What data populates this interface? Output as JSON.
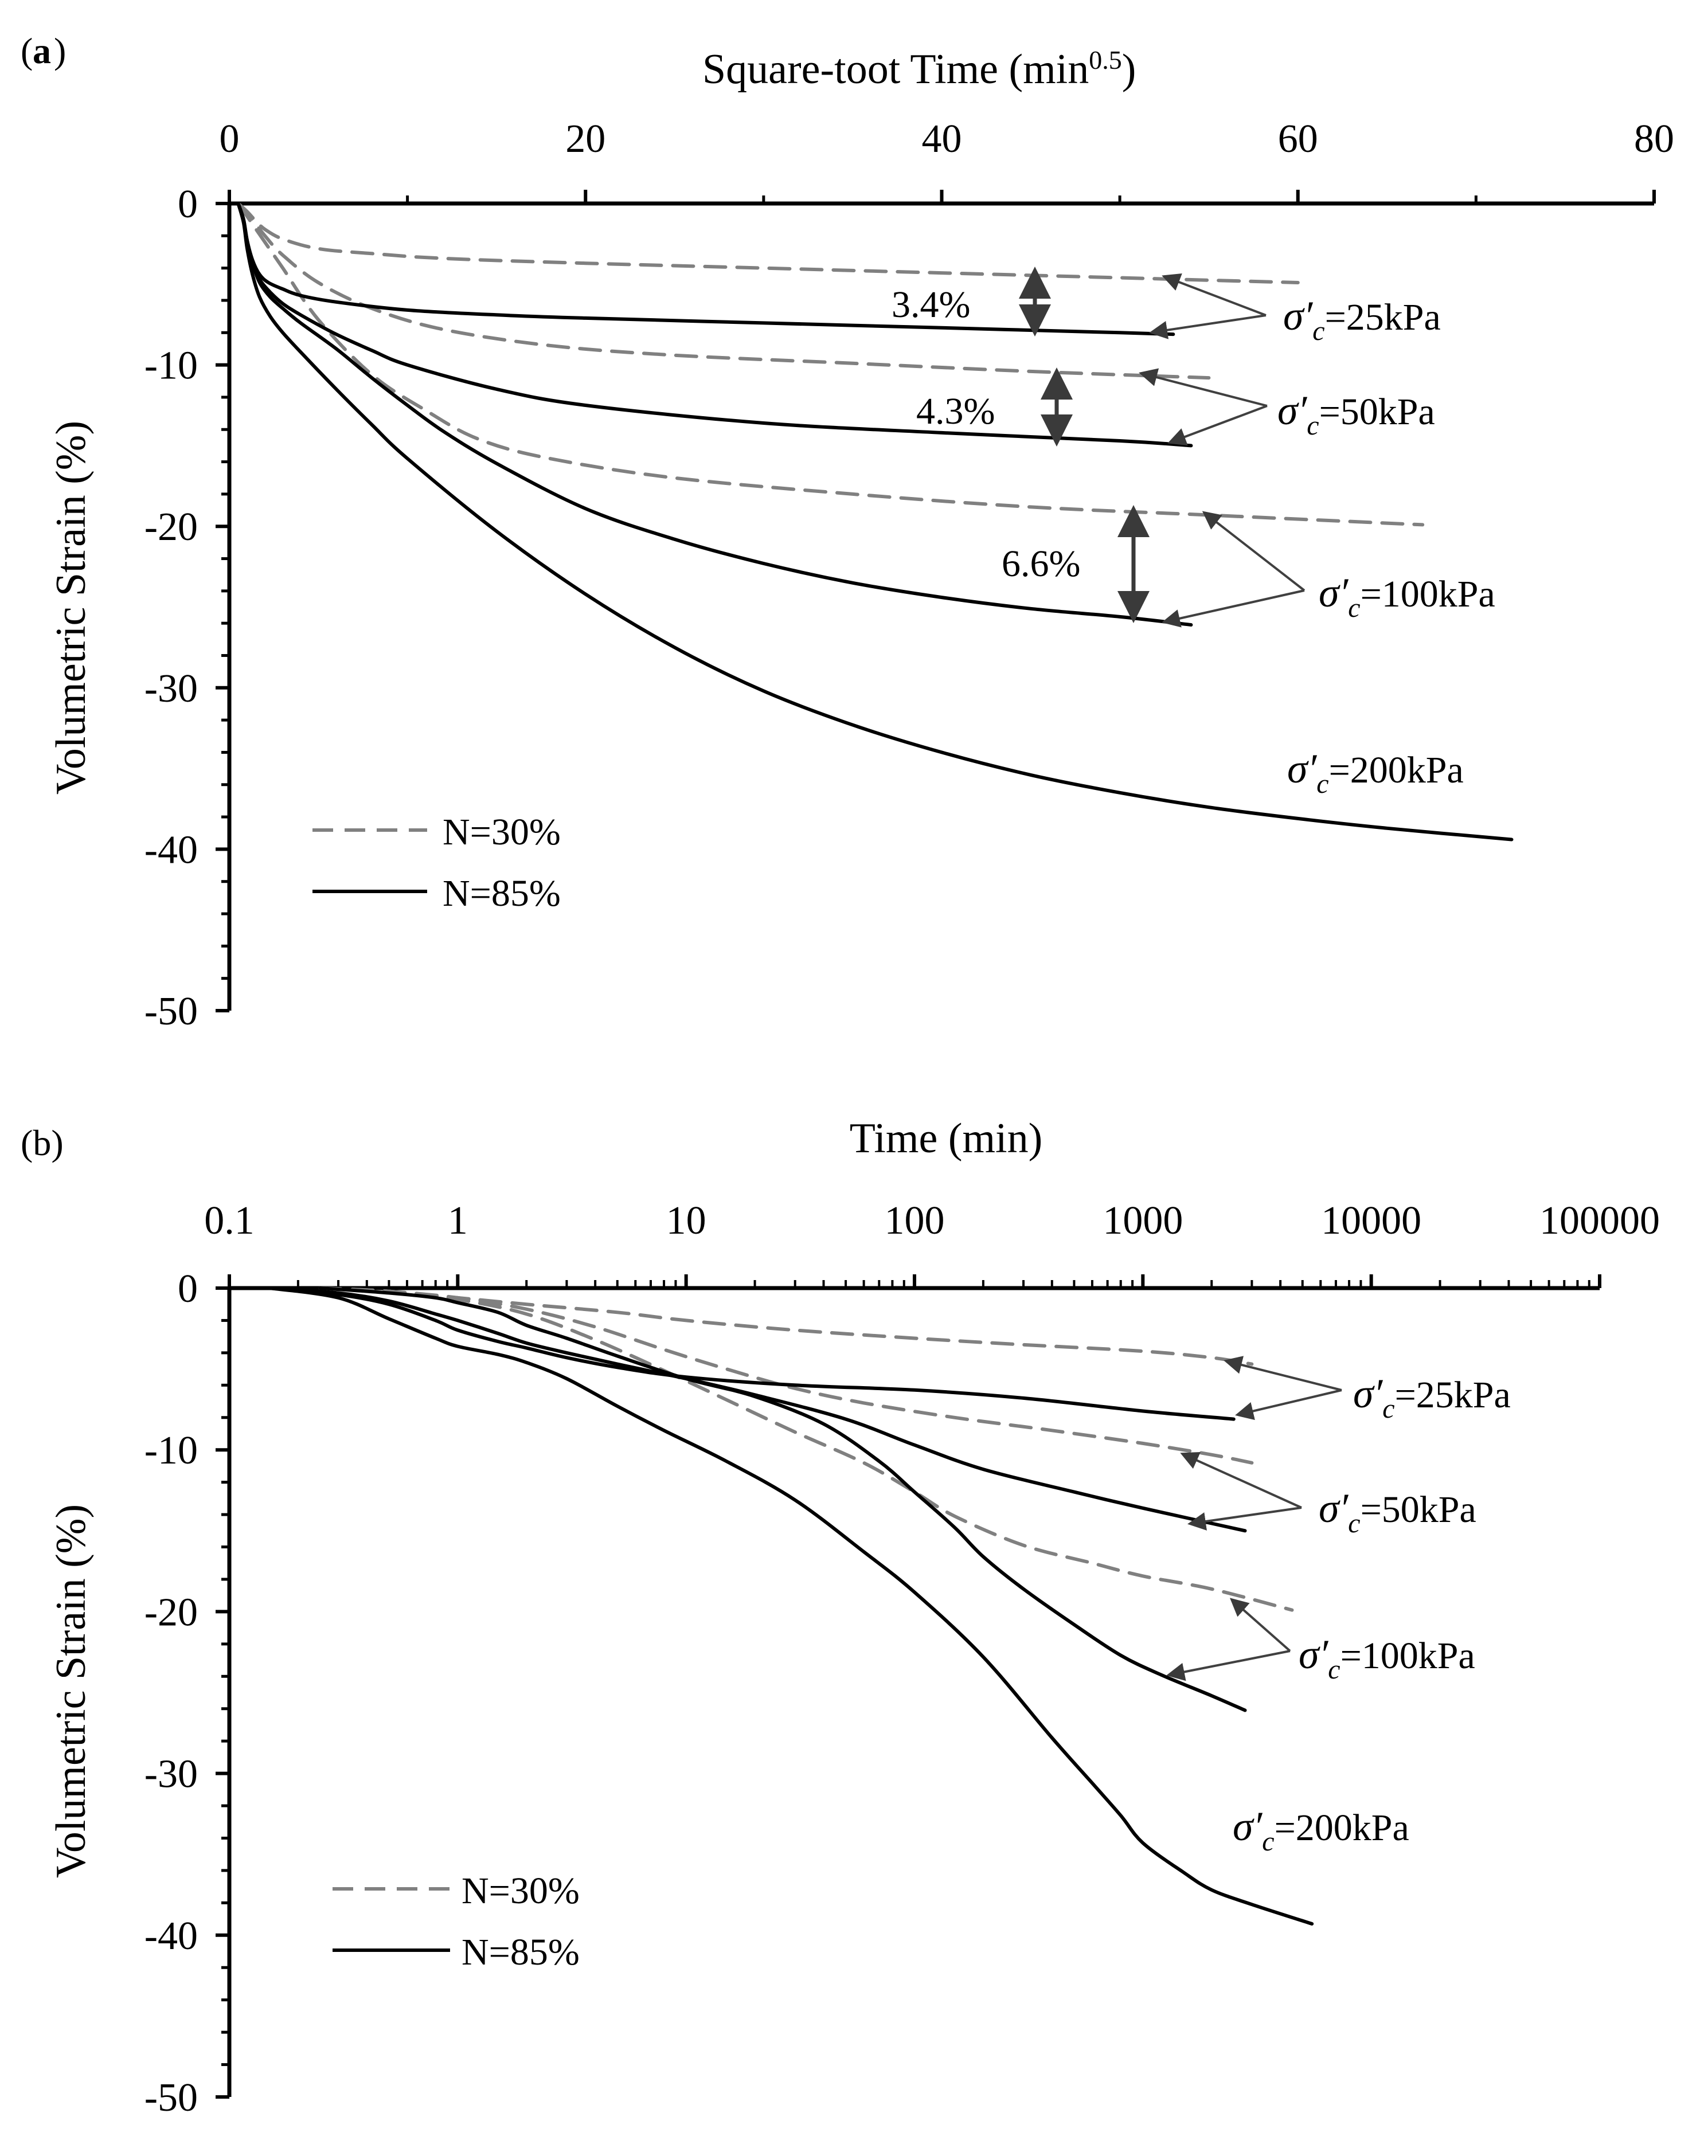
{
  "figure": {
    "panel_a_label": "a",
    "panel_b_label": "(b)"
  },
  "legend": {
    "n30": "N=30%",
    "n85": "N=85%",
    "n30_color": "#808080",
    "n85_color": "#000000"
  },
  "stress_labels": {
    "s25": "=25kPa",
    "s50": "=50kPa",
    "s100": "=100kPa",
    "s200": "=200kPa",
    "sigma_symbol": "σ′",
    "sub_c": "c"
  },
  "chart_data": [
    {
      "panel": "a",
      "type": "line",
      "title": "",
      "xlabel": "Square-toot Time (min",
      "xlabel_superscript": "0.5",
      "xlabel_suffix": ")",
      "ylabel": "Volumetric Strain (%)",
      "x_axis_position": "top",
      "xlim": [
        0,
        80
      ],
      "ylim": [
        -50,
        0
      ],
      "x_ticks": [
        0,
        20,
        40,
        60,
        80
      ],
      "y_ticks": [
        0,
        -10,
        -20,
        -30,
        -40,
        -50
      ],
      "grid": false,
      "legend_position": "bottom-left",
      "annotations": [
        "3.4%",
        "4.3%",
        "6.6%"
      ],
      "series": [
        {
          "name": "N=30%, σ′c=25kPa",
          "style": "dashed",
          "x": [
            0.5,
            1,
            1.5,
            2,
            3,
            5,
            8,
            12,
            20,
            30,
            40,
            50,
            60
          ],
          "y": [
            0,
            -0.5,
            -1.1,
            -1.6,
            -2.2,
            -2.8,
            -3.1,
            -3.4,
            -3.7,
            -4.0,
            -4.3,
            -4.6,
            -4.9
          ]
        },
        {
          "name": "N=30%, σ′c=50kPa",
          "style": "dashed",
          "x": [
            0.5,
            1,
            2,
            3,
            5,
            8,
            12,
            18,
            25,
            35,
            45,
            55
          ],
          "y": [
            0,
            -0.6,
            -2.0,
            -3.2,
            -4.9,
            -6.5,
            -7.8,
            -8.8,
            -9.4,
            -9.9,
            -10.4,
            -10.8
          ]
        },
        {
          "name": "N=30%, σ′c=100kPa",
          "style": "dashed",
          "x": [
            0.5,
            1,
            2,
            3,
            5,
            8,
            11,
            14,
            18,
            25,
            35,
            45,
            55,
            67
          ],
          "y": [
            0,
            -0.8,
            -2.4,
            -4.0,
            -7.2,
            -10.6,
            -12.8,
            -14.6,
            -15.8,
            -17.0,
            -18.0,
            -18.8,
            -19.3,
            -19.9
          ]
        },
        {
          "name": "N=85%, σ′c=25kPa",
          "style": "solid",
          "x": [
            0.5,
            0.8,
            1,
            1.3,
            1.7,
            2.2,
            3,
            4,
            6,
            10,
            15,
            20,
            30,
            40,
            50,
            53
          ],
          "y": [
            0,
            -1.0,
            -2.3,
            -3.5,
            -4.4,
            -4.9,
            -5.3,
            -5.7,
            -6.1,
            -6.6,
            -6.9,
            -7.1,
            -7.4,
            -7.7,
            -8.0,
            -8.1
          ]
        },
        {
          "name": "N=85%, σ′c=50kPa",
          "style": "solid",
          "x": [
            0.5,
            0.8,
            1,
            1.3,
            1.7,
            2.3,
            3,
            4,
            6,
            8,
            10,
            15,
            20,
            30,
            40,
            50,
            54
          ],
          "y": [
            0,
            -1.0,
            -2.3,
            -3.6,
            -4.7,
            -5.5,
            -6.2,
            -6.9,
            -8.1,
            -9.1,
            -10.0,
            -11.5,
            -12.5,
            -13.6,
            -14.2,
            -14.7,
            -15.0
          ]
        },
        {
          "name": "N=85%, σ′c=100kPa",
          "style": "solid",
          "x": [
            0.5,
            0.8,
            1,
            1.3,
            1.7,
            2.3,
            3,
            4,
            6,
            8,
            10,
            12,
            15,
            20,
            25,
            30,
            35,
            40,
            45,
            50,
            54
          ],
          "y": [
            0,
            -1.1,
            -2.4,
            -3.7,
            -4.9,
            -5.8,
            -6.5,
            -7.4,
            -9.0,
            -10.8,
            -12.5,
            -14.1,
            -16.1,
            -18.9,
            -20.8,
            -22.3,
            -23.5,
            -24.4,
            -25.1,
            -25.6,
            -26.1
          ]
        },
        {
          "name": "N=85%, σ′c=200kPa",
          "style": "solid",
          "x": [
            0.5,
            0.8,
            1,
            1.3,
            1.7,
            2.3,
            3,
            4,
            6,
            8,
            10,
            15,
            20,
            25,
            30,
            35,
            40,
            45,
            50,
            55,
            60,
            65,
            72
          ],
          "y": [
            0,
            -1.2,
            -2.8,
            -4.4,
            -5.8,
            -7.0,
            -8.0,
            -9.2,
            -11.5,
            -13.7,
            -15.8,
            -20.3,
            -24.2,
            -27.5,
            -30.2,
            -32.3,
            -34.0,
            -35.4,
            -36.5,
            -37.4,
            -38.1,
            -38.7,
            -39.4
          ]
        }
      ]
    },
    {
      "panel": "b",
      "type": "line",
      "title": "",
      "xlabel": "Time (min)",
      "ylabel": "Volumetric Strain (%)",
      "x_axis_position": "top",
      "x_scale": "log",
      "xlim": [
        0.1,
        100000
      ],
      "ylim": [
        -50,
        0
      ],
      "x_ticks": [
        0.1,
        1,
        10,
        100,
        1000,
        10000,
        100000
      ],
      "x_tick_labels": [
        "0.1",
        "1",
        "10",
        "100",
        "1000",
        "10000",
        "100000"
      ],
      "y_ticks": [
        0,
        -10,
        -20,
        -30,
        -40,
        -50
      ],
      "grid": false,
      "legend_position": "bottom-left",
      "series": [
        {
          "name": "N=30%, σ′c=25kPa",
          "style": "dashed",
          "x": [
            0.25,
            0.5,
            1,
            2,
            5,
            10,
            30,
            100,
            300,
            1000,
            2000,
            3000
          ],
          "y": [
            0,
            -0.2,
            -0.6,
            -1.0,
            -1.5,
            -2.0,
            -2.6,
            -3.1,
            -3.5,
            -3.9,
            -4.3,
            -4.7
          ]
        },
        {
          "name": "N=30%, σ′c=50kPa",
          "style": "dashed",
          "x": [
            0.25,
            0.5,
            1,
            2,
            4,
            8,
            15,
            30,
            60,
            150,
            400,
            1000,
            2000,
            3000
          ],
          "y": [
            0,
            -0.2,
            -0.6,
            -1.3,
            -2.4,
            -3.8,
            -5.0,
            -6.2,
            -7.1,
            -8.0,
            -8.8,
            -9.6,
            -10.3,
            -10.8
          ]
        },
        {
          "name": "N=30%, σ′c=100kPa",
          "style": "dashed",
          "x": [
            0.25,
            0.5,
            1,
            2,
            4,
            8,
            15,
            30,
            60,
            100,
            150,
            300,
            600,
            1000,
            2000,
            4500
          ],
          "y": [
            0,
            -0.2,
            -0.7,
            -1.6,
            -3.2,
            -5.1,
            -6.9,
            -8.9,
            -10.8,
            -12.6,
            -14.1,
            -15.9,
            -17.0,
            -17.8,
            -18.6,
            -19.9
          ]
        },
        {
          "name": "N=85%, σ′c=25kPa",
          "style": "solid",
          "x": [
            0.15,
            0.3,
            0.5,
            0.8,
            1,
            1.5,
            2,
            3,
            5,
            10,
            30,
            100,
            300,
            1000,
            2500
          ],
          "y": [
            0,
            -0.4,
            -1.0,
            -2.0,
            -2.6,
            -3.3,
            -3.7,
            -4.3,
            -4.9,
            -5.5,
            -6.0,
            -6.3,
            -6.8,
            -7.6,
            -8.1
          ]
        },
        {
          "name": "N=85%, σ′c=50kPa",
          "style": "solid",
          "x": [
            0.15,
            0.3,
            0.5,
            0.8,
            1,
            1.5,
            2,
            3,
            5,
            10,
            20,
            50,
            100,
            200,
            500,
            1000,
            2800
          ],
          "y": [
            0,
            -0.3,
            -0.8,
            -1.6,
            -2.0,
            -2.8,
            -3.4,
            -4.0,
            -4.7,
            -5.6,
            -6.6,
            -8.1,
            -9.7,
            -11.2,
            -12.6,
            -13.6,
            -15.0
          ]
        },
        {
          "name": "N=85%, σ′c=100kPa",
          "style": "solid",
          "x": [
            0.25,
            0.5,
            0.8,
            1,
            1.5,
            2,
            3,
            5,
            10,
            20,
            40,
            70,
            100,
            150,
            200,
            300,
            500,
            800,
            1200,
            2000,
            2800
          ],
          "y": [
            0,
            -0.3,
            -0.6,
            -0.9,
            -1.5,
            -2.3,
            -3.1,
            -4.2,
            -5.6,
            -6.7,
            -8.4,
            -10.7,
            -12.6,
            -14.8,
            -16.6,
            -18.6,
            -20.8,
            -22.7,
            -23.9,
            -25.2,
            -26.1
          ]
        },
        {
          "name": "N=85%, σ′c=200kPa",
          "style": "solid",
          "x": [
            0.15,
            0.3,
            0.5,
            0.8,
            1,
            1.5,
            2,
            3,
            5,
            8,
            15,
            30,
            60,
            100,
            200,
            400,
            600,
            800,
            1000,
            1500,
            2000,
            3000,
            5500
          ],
          "y": [
            0,
            -0.6,
            -1.9,
            -3.1,
            -3.6,
            -4.1,
            -4.6,
            -5.6,
            -7.3,
            -8.8,
            -10.7,
            -13.1,
            -16.3,
            -18.8,
            -22.8,
            -27.8,
            -30.6,
            -32.6,
            -34.3,
            -36.1,
            -37.2,
            -38.1,
            -39.3
          ]
        }
      ]
    }
  ]
}
